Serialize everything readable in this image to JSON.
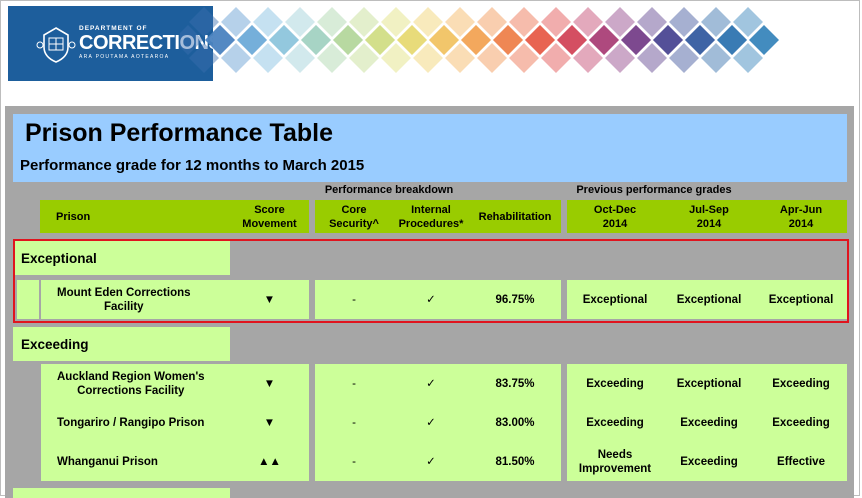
{
  "header": {
    "org_top": "DEPARTMENT OF",
    "org_main": "CORRECTIONS",
    "org_sub": "ARA POUTAMA AOTEAROA"
  },
  "title": "Prison Performance Table",
  "subtitle": "Performance grade for 12 months to March 2015",
  "group_headers": {
    "breakdown": "Performance breakdown",
    "previous": "Previous performance grades"
  },
  "columns": {
    "prison": "Prison",
    "score1": "Score",
    "score2": "Movement",
    "core1": "Core",
    "core2": "Security^",
    "internal1": "Internal",
    "internal2": "Procedures*",
    "rehab": "Rehabilitation",
    "p1a": "Oct-Dec",
    "p1b": "2014",
    "p2a": "Jul-Sep",
    "p2b": "2014",
    "p3a": "Apr-Jun",
    "p3b": "2014"
  },
  "sections": {
    "exceptional": {
      "label": "Exceptional",
      "rows": [
        {
          "name1": "Mount Eden Corrections",
          "name2": "Facility",
          "movement": "▼",
          "core": "-",
          "internal": "✓",
          "rehab": "96.75%",
          "g1a": "Exceptional",
          "g1b": "",
          "g2": "Exceptional",
          "g3": "Exceptional"
        }
      ]
    },
    "exceeding": {
      "label": "Exceeding",
      "rows": [
        {
          "name1": "Auckland Region Women's",
          "name2": "Corrections Facility",
          "movement": "▼",
          "core": "-",
          "internal": "✓",
          "rehab": "83.75%",
          "g1a": "Exceeding",
          "g1b": "",
          "g2": "Exceptional",
          "g3": "Exceeding"
        },
        {
          "name1": "Tongariro / Rangipo Prison",
          "name2": "",
          "movement": "▼",
          "core": "-",
          "internal": "✓",
          "rehab": "83.00%",
          "g1a": "Exceeding",
          "g1b": "",
          "g2": "Exceeding",
          "g3": "Exceeding"
        },
        {
          "name1": "Whanganui Prison",
          "name2": "",
          "movement": "▲▲",
          "core": "-",
          "internal": "✓",
          "rehab": "81.50%",
          "g1a": "Needs",
          "g1b": "Improvement",
          "g2": "Exceeding",
          "g3": "Effective"
        }
      ]
    }
  },
  "colors": {
    "header_blue": "#1d5e9c",
    "title_bg": "#99ccff",
    "header_green": "#99cc00",
    "cell_green": "#ccff99",
    "panel_gray": "#a6a6a6",
    "highlight_red": "#e0141e"
  }
}
